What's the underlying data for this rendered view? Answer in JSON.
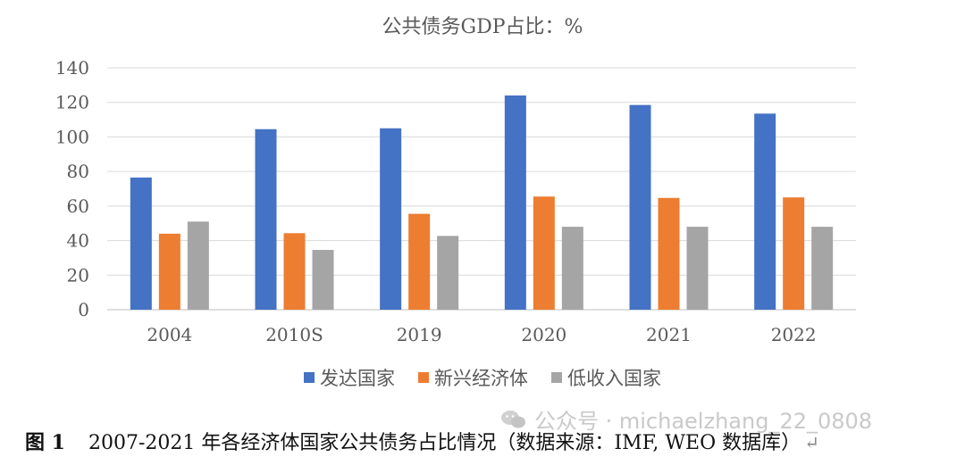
{
  "chart_data": {
    "type": "bar",
    "title": "公共债务GDP占比：%",
    "categories": [
      "2004",
      "2010S",
      "2019",
      "2020",
      "2021",
      "2022"
    ],
    "series": [
      {
        "name": "发达国家",
        "color": "#4472C4",
        "values": [
          76.5,
          104.5,
          105,
          124,
          118.5,
          113.5
        ]
      },
      {
        "name": "新兴经济体",
        "color": "#ED7D31",
        "values": [
          44,
          44.3,
          55.5,
          65.5,
          64.7,
          65
        ]
      },
      {
        "name": "低收入国家",
        "color": "#A5A5A5",
        "values": [
          51,
          34.6,
          42.7,
          48,
          48,
          48
        ]
      }
    ],
    "ylim": [
      0,
      140
    ],
    "yticks": [
      0,
      20,
      40,
      60,
      80,
      100,
      120,
      140
    ],
    "grid": true,
    "legend_position": "bottom"
  },
  "caption": {
    "label": "图 1",
    "text": "2007-2021 年各经济体国家公共债务占比情况（数据来源：IMF, WEO 数据库）",
    "return_mark": "↵"
  },
  "watermark": {
    "icon": "wechat-icon",
    "text": "公众号 · michaelzhang_22_0808"
  }
}
